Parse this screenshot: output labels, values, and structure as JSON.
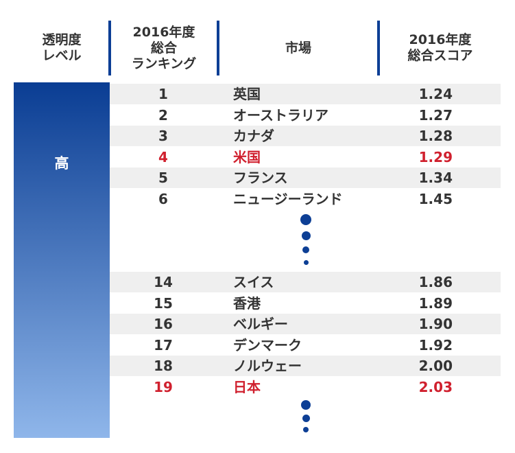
{
  "header": {
    "columns": [
      [
        "透明度",
        "レベル"
      ],
      [
        "2016年度",
        "総合",
        "ランキング"
      ],
      [
        "市場"
      ],
      [
        "2016年度",
        "総合スコア"
      ]
    ]
  },
  "level": "高",
  "groups": [
    [
      {
        "rank": "1",
        "market": "英国",
        "score": "1.24",
        "color": "#333333"
      },
      {
        "rank": "2",
        "market": "オーストラリア",
        "score": "1.27",
        "color": "#333333"
      },
      {
        "rank": "3",
        "market": "カナダ",
        "score": "1.28",
        "color": "#333333"
      },
      {
        "rank": "4",
        "market": "米国",
        "score": "1.29",
        "color": "#d0202e"
      },
      {
        "rank": "5",
        "market": "フランス",
        "score": "1.34",
        "color": "#333333"
      },
      {
        "rank": "6",
        "market": "ニュージーランド",
        "score": "1.45",
        "color": "#333333"
      }
    ],
    [
      {
        "rank": "14",
        "market": "スイス",
        "score": "1.86",
        "color": "#333333"
      },
      {
        "rank": "15",
        "market": "香港",
        "score": "1.89",
        "color": "#333333"
      },
      {
        "rank": "16",
        "market": "ベルギー",
        "score": "1.90",
        "color": "#333333"
      },
      {
        "rank": "17",
        "market": "デンマーク",
        "score": "1.92",
        "color": "#333333"
      },
      {
        "rank": "18",
        "market": "ノルウェー",
        "score": "2.00",
        "color": "#333333"
      },
      {
        "rank": "19",
        "market": "日本",
        "score": "2.03",
        "color": "#d0202e"
      }
    ]
  ]
}
